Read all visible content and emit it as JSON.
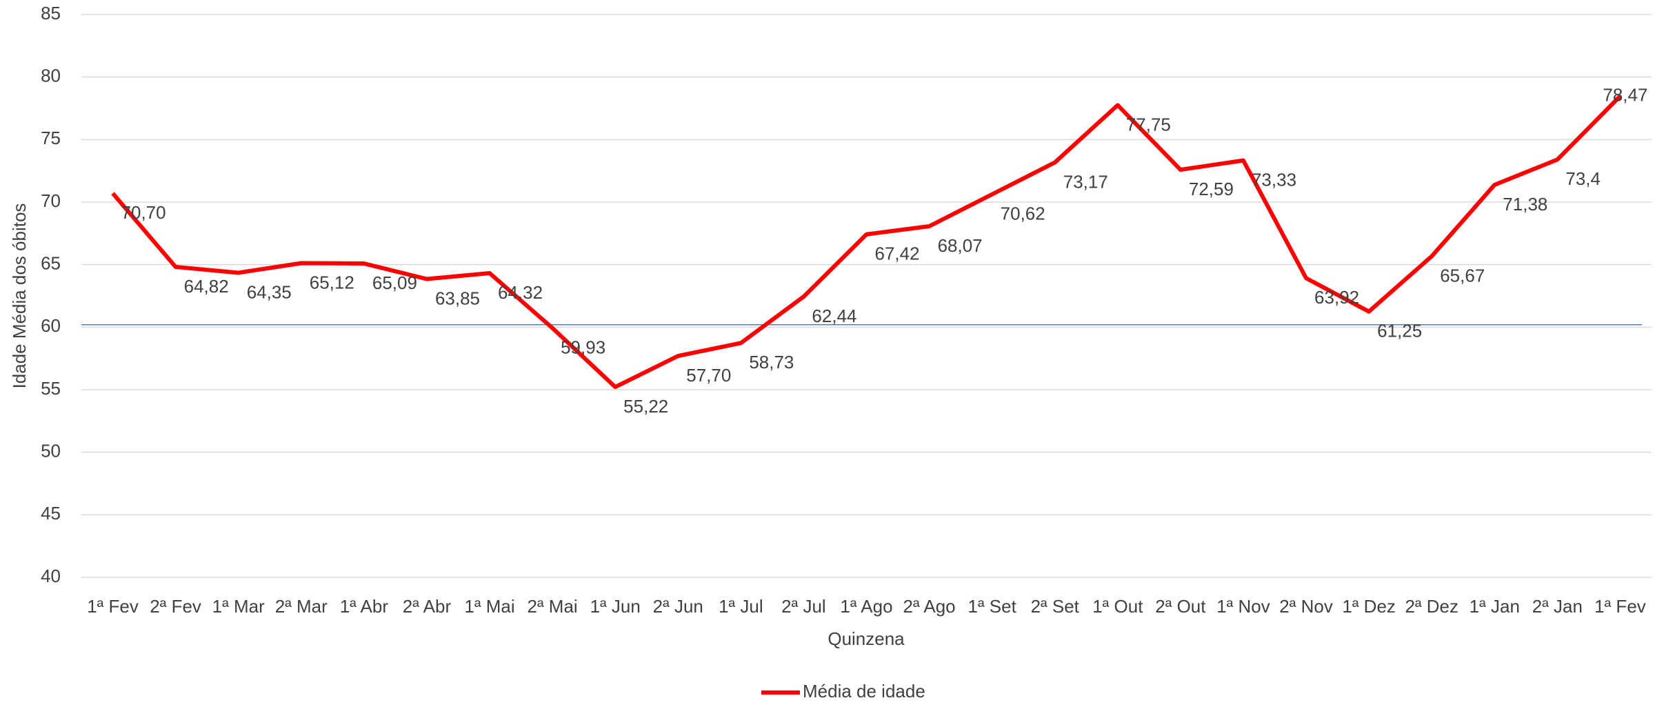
{
  "chart_data": {
    "type": "line",
    "y_label": "Idade Média dos óbitos",
    "x_label": "Quinzena",
    "categories": [
      "1ª Fev",
      "2ª Fev",
      "1ª Mar",
      "2ª Mar",
      "1ª Abr",
      "2ª Abr",
      "1ª Mai",
      "2ª Mai",
      "1ª Jun",
      "2ª Jun",
      "1ª Jul",
      "2ª Jul",
      "1ª Ago",
      "2ª Ago",
      "1ª Set",
      "2ª Set",
      "1ª Out",
      "2ª Out",
      "1ª Nov",
      "2ª Nov",
      "1ª Dez",
      "2ª Dez",
      "1ª Jan",
      "2ª Jan",
      "1ª Fev"
    ],
    "series": [
      {
        "name": "Média de idade",
        "color": "#ff0000",
        "values": [
          70.7,
          64.82,
          64.35,
          65.12,
          65.09,
          63.85,
          64.32,
          59.93,
          55.22,
          57.7,
          58.73,
          62.44,
          67.42,
          68.07,
          70.62,
          73.17,
          77.75,
          72.59,
          73.33,
          63.92,
          61.25,
          65.67,
          71.38,
          73.4,
          78.47
        ],
        "value_labels": [
          "70,70",
          "64,82",
          "64,35",
          "65,12",
          "65,09",
          "63,85",
          "64,32",
          "59,93",
          "55,22",
          "57,70",
          "58,73",
          "62,44",
          "67,42",
          "68,07",
          "70,62",
          "73,17",
          "77,75",
          "72,59",
          "73,33",
          "63,92",
          "61,25",
          "65,67",
          "71,38",
          "73,4",
          "78,47"
        ]
      }
    ],
    "reference_line": {
      "value": 60.2,
      "color": "#4a7ebb"
    },
    "ylim": [
      40,
      85
    ],
    "yticks": [
      40,
      45,
      50,
      55,
      60,
      65,
      70,
      75,
      80,
      85
    ],
    "grid": true,
    "legend": "bottom"
  }
}
